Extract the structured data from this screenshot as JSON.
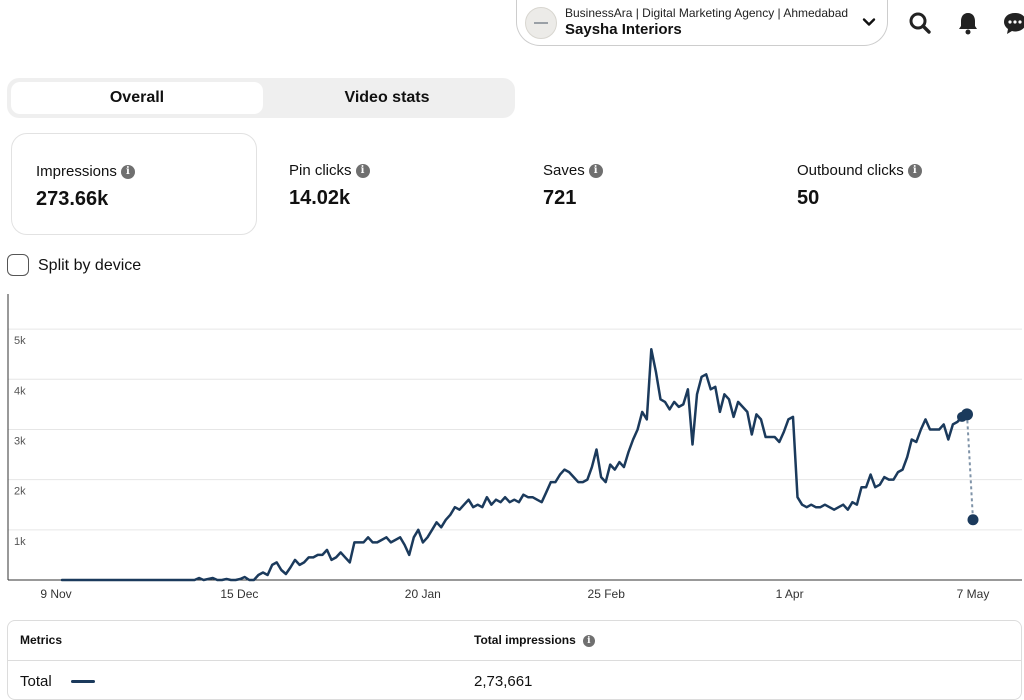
{
  "header": {
    "account_subtitle": "BusinessAra | Digital Marketing Agency | Ahmedabad",
    "account_name": "Saysha Interiors",
    "icons": [
      "chevron-down-icon",
      "search-icon",
      "bell-icon",
      "message-icon"
    ]
  },
  "tabs": [
    {
      "label": "Overall",
      "active": true
    },
    {
      "label": "Video stats",
      "active": false
    }
  ],
  "stats": [
    {
      "label": "Impressions",
      "value": "273.66k",
      "selected": true
    },
    {
      "label": "Pin clicks",
      "value": "14.02k",
      "selected": false
    },
    {
      "label": "Saves",
      "value": "721",
      "selected": false
    },
    {
      "label": "Outbound clicks",
      "value": "50",
      "selected": false
    }
  ],
  "split_by_device": {
    "label": "Split by device",
    "checked": false
  },
  "chart_data": {
    "type": "line",
    "series": [
      {
        "name": "Total",
        "color": "#1b3a5c",
        "values": [
          0,
          0,
          0,
          0,
          0,
          0,
          0,
          0,
          0,
          0,
          0,
          0,
          0,
          0,
          0,
          0,
          0,
          0,
          0,
          0,
          0,
          0,
          0,
          0,
          0,
          0,
          0,
          0,
          0,
          0,
          40,
          0,
          20,
          40,
          0,
          0,
          20,
          0,
          0,
          20,
          60,
          0,
          0,
          100,
          150,
          100,
          300,
          350,
          200,
          120,
          250,
          400,
          300,
          350,
          450,
          450,
          500,
          500,
          600,
          400,
          450,
          550,
          450,
          350,
          750,
          750,
          750,
          850,
          750,
          750,
          800,
          850,
          750,
          800,
          850,
          700,
          500,
          850,
          1000,
          750,
          850,
          1000,
          1150,
          1050,
          1200,
          1300,
          1450,
          1400,
          1500,
          1600,
          1450,
          1500,
          1450,
          1650,
          1500,
          1600,
          1550,
          1650,
          1550,
          1600,
          1550,
          1700,
          1650,
          1650,
          1600,
          1550,
          1750,
          1950,
          1950,
          2100,
          2200,
          2150,
          2050,
          1950,
          1950,
          2000,
          2250,
          2600,
          2050,
          1950,
          2300,
          2200,
          2350,
          2250,
          2550,
          2800,
          3000,
          3350,
          3200,
          4600,
          4150,
          3600,
          3550,
          3400,
          3550,
          3450,
          3500,
          3800,
          2700,
          3700,
          4050,
          4100,
          3800,
          3850,
          3350,
          3700,
          3600,
          3250,
          3550,
          3450,
          3350,
          2900,
          3300,
          3200,
          2850,
          2850,
          2850,
          2750,
          2950,
          3200,
          3250,
          1650,
          1500,
          1450,
          1500,
          1450,
          1450,
          1500,
          1450,
          1400,
          1450,
          1500,
          1400,
          1550,
          1500,
          1850,
          1850,
          2100,
          1850,
          1900,
          2050,
          2000,
          2000,
          2150,
          2200,
          2450,
          2800,
          2750,
          3000,
          3200,
          3000,
          3000,
          3000,
          3100,
          2800,
          3100,
          3150,
          3250
        ],
        "last_value_actual": 3300,
        "projected_value": 1200
      }
    ],
    "x_tick_labels": [
      "9 Nov",
      "15 Dec",
      "20 Jan",
      "25 Feb",
      "1 Apr",
      "7 May"
    ],
    "y_tick_labels": [
      "1k",
      "2k",
      "3k",
      "4k",
      "5k"
    ],
    "ylim": [
      0,
      5500
    ],
    "grid": true,
    "line_style_projection": "dashed"
  },
  "metrics_table": {
    "header_metric": "Metrics",
    "header_total": "Total impressions",
    "rows": [
      {
        "label": "Total",
        "value": "2,73,661"
      }
    ]
  }
}
